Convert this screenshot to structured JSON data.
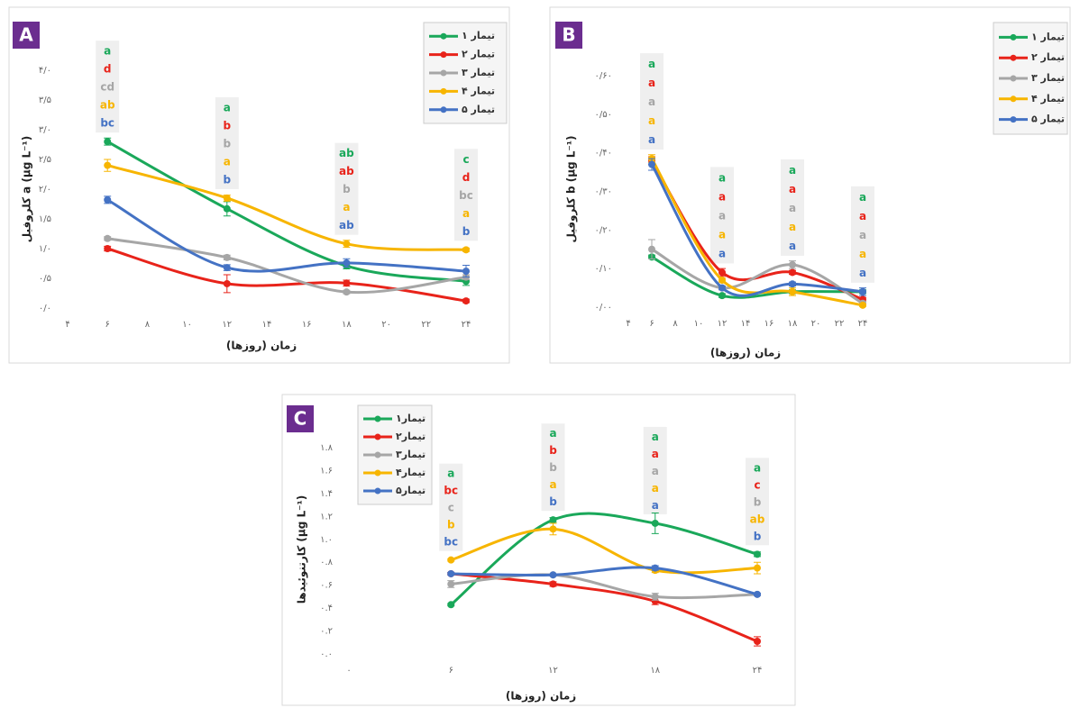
{
  "chart_data": [
    {
      "type": "line",
      "label": "A",
      "x_label": "زمان (روزها)",
      "y_label": "کلروفیل a (µg L⁻¹)",
      "xlim": [
        4,
        24
      ],
      "xticks": [
        {
          "value": 4,
          "label": "۴"
        },
        {
          "value": 6,
          "label": "۶"
        },
        {
          "value": 8,
          "label": "۸"
        },
        {
          "value": 10,
          "label": "۱۰"
        },
        {
          "value": 12,
          "label": "۱۲"
        },
        {
          "value": 14,
          "label": "۱۴"
        },
        {
          "value": 16,
          "label": "۱۶"
        },
        {
          "value": 18,
          "label": "۱۸"
        },
        {
          "value": 20,
          "label": "۲۰"
        },
        {
          "value": 22,
          "label": "۲۲"
        },
        {
          "value": 24,
          "label": "۲۴"
        }
      ],
      "ylim": [
        0,
        4
      ],
      "yticks": [
        {
          "value": 0,
          "label": "۰/۰"
        },
        {
          "value": 0.5,
          "label": "۰/۵"
        },
        {
          "value": 1,
          "label": "۱/۰"
        },
        {
          "value": 1.5,
          "label": "۱/۵"
        },
        {
          "value": 2,
          "label": "۲/۰"
        },
        {
          "value": 2.5,
          "label": "۲/۵"
        },
        {
          "value": 3,
          "label": "۳/۰"
        },
        {
          "value": 3.5,
          "label": "۳/۵"
        },
        {
          "value": 4,
          "label": "۴/۰"
        }
      ],
      "x": [
        6,
        12,
        18,
        24
      ],
      "series": [
        {
          "name": "تیمار ۱",
          "color": "#1aa85a",
          "values": [
            2.8,
            1.67,
            0.71,
            0.45
          ],
          "errors": [
            0.06,
            0.12,
            0.05,
            0.07
          ]
        },
        {
          "name": "تیمار ۲",
          "color": "#e8231a",
          "values": [
            1.0,
            0.41,
            0.42,
            0.12
          ],
          "errors": [
            0.04,
            0.15,
            0.05,
            0.03
          ]
        },
        {
          "name": "تیمار ۳",
          "color": "#a6a6a6",
          "values": [
            1.17,
            0.85,
            0.27,
            0.52
          ],
          "errors": [
            0.03,
            0.04,
            0.03,
            0.04
          ]
        },
        {
          "name": "تیمار ۴",
          "color": "#f7b500",
          "values": [
            2.4,
            1.85,
            1.08,
            0.98
          ],
          "errors": [
            0.1,
            0.05,
            0.06,
            0.03
          ]
        },
        {
          "name": "تیمار ۵",
          "color": "#4472c4",
          "values": [
            1.82,
            0.68,
            0.76,
            0.62
          ],
          "errors": [
            0.06,
            0.05,
            0.07,
            0.1
          ]
        }
      ],
      "letters": [
        [
          "a",
          "d",
          "cd",
          "ab",
          "bc"
        ],
        [
          "a",
          "b",
          "b",
          "a",
          "b"
        ],
        [
          "ab",
          "ab",
          "b",
          "a",
          "ab"
        ],
        [
          "c",
          "d",
          "bc",
          "a",
          "b"
        ]
      ]
    },
    {
      "type": "line",
      "label": "B",
      "x_label": "زمان (روزها)",
      "y_label": "کلروفیل b (µg L⁻¹)",
      "xlim": [
        4,
        24
      ],
      "xticks": [
        {
          "value": 4,
          "label": "۴"
        },
        {
          "value": 6,
          "label": "۶"
        },
        {
          "value": 8,
          "label": "۸"
        },
        {
          "value": 10,
          "label": "۱۰"
        },
        {
          "value": 12,
          "label": "۱۲"
        },
        {
          "value": 14,
          "label": "۱۴"
        },
        {
          "value": 16,
          "label": "۱۶"
        },
        {
          "value": 18,
          "label": "۱۸"
        },
        {
          "value": 20,
          "label": "۲۰"
        },
        {
          "value": 22,
          "label": "۲۲"
        },
        {
          "value": 24,
          "label": "۲۴"
        }
      ],
      "ylim": [
        0,
        0.6
      ],
      "yticks": [
        {
          "value": 0,
          "label": "۰/۰۰"
        },
        {
          "value": 0.1,
          "label": "۰/۱۰"
        },
        {
          "value": 0.2,
          "label": "۰/۲۰"
        },
        {
          "value": 0.3,
          "label": "۰/۳۰"
        },
        {
          "value": 0.4,
          "label": "۰/۴۰"
        },
        {
          "value": 0.5,
          "label": "۰/۵۰"
        },
        {
          "value": 0.6,
          "label": "۰/۶۰"
        }
      ],
      "x": [
        6,
        12,
        18,
        24
      ],
      "series": [
        {
          "name": "تیمار ۱",
          "color": "#1aa85a",
          "values": [
            0.13,
            0.03,
            0.04,
            0.04
          ],
          "errors": [
            0.005,
            0.005,
            0.005,
            0.005
          ]
        },
        {
          "name": "تیمار ۲",
          "color": "#e8231a",
          "values": [
            0.38,
            0.09,
            0.09,
            0.02
          ],
          "errors": [
            0.01,
            0.01,
            0.005,
            0.005
          ]
        },
        {
          "name": "تیمار ۳",
          "color": "#a6a6a6",
          "values": [
            0.15,
            0.05,
            0.11,
            0.01
          ],
          "errors": [
            0.025,
            0.005,
            0.01,
            0.005
          ]
        },
        {
          "name": "تیمار ۴",
          "color": "#f7b500",
          "values": [
            0.385,
            0.07,
            0.04,
            0.005
          ],
          "errors": [
            0.01,
            0.005,
            0.01,
            0.003
          ]
        },
        {
          "name": "تیمار ۵",
          "color": "#4472c4",
          "values": [
            0.37,
            0.05,
            0.06,
            0.04
          ],
          "errors": [
            0.015,
            0.005,
            0.005,
            0.01
          ]
        }
      ],
      "letters": [
        [
          "a",
          "a",
          "a",
          "a",
          "a"
        ],
        [
          "a",
          "a",
          "a",
          "a",
          "a"
        ],
        [
          "a",
          "a",
          "a",
          "a",
          "a"
        ],
        [
          "a",
          "a",
          "a",
          "a",
          "a"
        ]
      ]
    },
    {
      "type": "line",
      "label": "C",
      "x_label": "زمان (روزها)",
      "y_label": "کارتنوئیدها (µg L⁻¹)",
      "xlim": [
        0,
        24
      ],
      "xticks": [
        {
          "value": 0,
          "label": "۰"
        },
        {
          "value": 6,
          "label": "۶"
        },
        {
          "value": 12,
          "label": "۱۲"
        },
        {
          "value": 18,
          "label": "۱۸"
        },
        {
          "value": 24,
          "label": "۲۴"
        }
      ],
      "ylim": [
        0,
        1.8
      ],
      "yticks": [
        {
          "value": 0,
          "label": "۰.۰"
        },
        {
          "value": 0.2,
          "label": "۰.۲"
        },
        {
          "value": 0.4,
          "label": "۰.۴"
        },
        {
          "value": 0.6,
          "label": "۰.۶"
        },
        {
          "value": 0.8,
          "label": "۰.۸"
        },
        {
          "value": 1,
          "label": "۱.۰"
        },
        {
          "value": 1.2,
          "label": "۱.۲"
        },
        {
          "value": 1.4,
          "label": "۱.۴"
        },
        {
          "value": 1.6,
          "label": "۱.۶"
        },
        {
          "value": 1.8,
          "label": "۱.۸"
        }
      ],
      "x": [
        6,
        12,
        18,
        24
      ],
      "series": [
        {
          "name": "تیمار۱",
          "color": "#1aa85a",
          "values": [
            0.43,
            1.17,
            1.14,
            0.87
          ],
          "errors": [
            0.01,
            0.02,
            0.09,
            0.02
          ]
        },
        {
          "name": "تیمار۲",
          "color": "#e8231a",
          "values": [
            0.7,
            0.61,
            0.46,
            0.11
          ],
          "errors": [
            0.01,
            0.02,
            0.03,
            0.04
          ]
        },
        {
          "name": "تیمار۳",
          "color": "#a6a6a6",
          "values": [
            0.61,
            0.69,
            0.5,
            0.52
          ],
          "errors": [
            0.03,
            0.01,
            0.03,
            0.01
          ]
        },
        {
          "name": "تیمار۴",
          "color": "#f7b500",
          "values": [
            0.82,
            1.09,
            0.73,
            0.75
          ],
          "errors": [
            0.01,
            0.05,
            0.02,
            0.05
          ]
        },
        {
          "name": "تیمار۵",
          "color": "#4472c4",
          "values": [
            0.7,
            0.69,
            0.75,
            0.52
          ],
          "errors": [
            0.01,
            0.01,
            0.02,
            0.01
          ]
        }
      ],
      "letters": [
        [
          "a",
          "bc",
          "c",
          "b",
          "bc"
        ],
        [
          "a",
          "b",
          "b",
          "a",
          "b"
        ],
        [
          "a",
          "a",
          "a",
          "a",
          "a"
        ],
        [
          "a",
          "c",
          "b",
          "ab",
          "b"
        ]
      ]
    }
  ]
}
